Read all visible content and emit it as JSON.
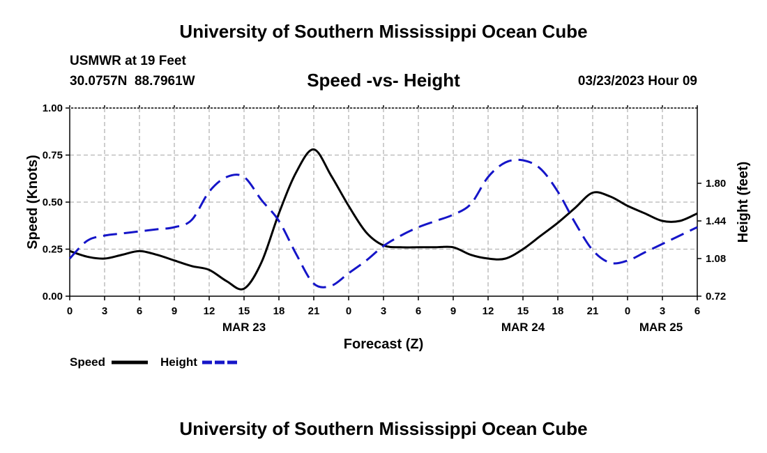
{
  "header": {
    "title": "University of Southern Mississippi Ocean Cube",
    "station": "USMWR at 19 Feet",
    "coords": "30.0757N  88.7961W",
    "subtitle": "Speed -vs- Height",
    "datetime": "03/23/2023 Hour 09"
  },
  "footer": {
    "title": "University of Southern Mississippi Ocean Cube"
  },
  "legend": {
    "speed_label": "Speed",
    "height_label": "Height"
  },
  "colors": {
    "speed": "#000000",
    "height": "#1515c8",
    "grid": "#b4b4b4"
  },
  "chart_data": {
    "type": "line",
    "title": "Speed -vs- Height",
    "xlabel": "Forecast (Z)",
    "ylabel": "Speed (Knots)",
    "ylabel_right": "Height (feet)",
    "x_ticks": [
      "0",
      "3",
      "6",
      "9",
      "12",
      "15",
      "18",
      "21",
      "0",
      "3",
      "6",
      "9",
      "12",
      "15",
      "18",
      "21",
      "0",
      "3",
      "6"
    ],
    "date_labels": [
      {
        "label": "MAR 23",
        "x": 15
      },
      {
        "label": "MAR 24",
        "x": 39
      },
      {
        "label": "MAR 25",
        "x": 63
      }
    ],
    "xlim": [
      0,
      54
    ],
    "ylim": [
      0,
      1.0
    ],
    "y_ticks": [
      "0.00",
      "0.25",
      "0.50",
      "0.75",
      "1.00"
    ],
    "y_tick_values": [
      0,
      0.25,
      0.5,
      0.75,
      1.0
    ],
    "ylim_right": [
      0.72,
      2.52
    ],
    "y_ticks_right": [
      "0.72",
      "1.08",
      "1.44",
      "1.80"
    ],
    "y_tick_values_right": [
      0.72,
      1.08,
      1.44,
      1.8
    ],
    "series": [
      {
        "name": "Speed",
        "axis": "left",
        "style": "solid",
        "x": [
          0,
          1.5,
          3,
          4.5,
          6,
          7.5,
          9,
          10.5,
          12,
          13.5,
          15,
          16.5,
          18,
          19.5,
          21,
          22.5,
          24,
          25.5,
          27,
          28.5,
          30,
          31.5,
          33,
          34.5,
          36,
          37.5,
          39,
          40.5,
          42,
          43.5,
          45,
          46.5,
          48,
          49.5,
          51,
          52.5,
          54
        ],
        "values": [
          0.24,
          0.21,
          0.2,
          0.22,
          0.24,
          0.22,
          0.19,
          0.16,
          0.14,
          0.08,
          0.04,
          0.18,
          0.44,
          0.66,
          0.78,
          0.64,
          0.48,
          0.34,
          0.27,
          0.26,
          0.26,
          0.26,
          0.26,
          0.22,
          0.2,
          0.2,
          0.25,
          0.32,
          0.39,
          0.47,
          0.55,
          0.53,
          0.48,
          0.44,
          0.4,
          0.4,
          0.44
        ]
      },
      {
        "name": "Height",
        "axis": "right",
        "style": "dashed",
        "x": [
          0,
          1.5,
          3,
          4.5,
          6,
          7.5,
          9,
          10.5,
          12,
          13.5,
          15,
          16.5,
          18,
          19.5,
          21,
          22.5,
          24,
          25.5,
          27,
          28.5,
          30,
          31.5,
          33,
          34.5,
          36,
          37.5,
          39,
          40.5,
          42,
          43.5,
          45,
          46.5,
          48,
          49.5,
          51,
          52.5,
          54
        ],
        "values": [
          1.08,
          1.25,
          1.3,
          1.32,
          1.34,
          1.36,
          1.38,
          1.45,
          1.72,
          1.86,
          1.86,
          1.64,
          1.44,
          1.12,
          0.84,
          0.82,
          0.94,
          1.06,
          1.2,
          1.3,
          1.38,
          1.44,
          1.5,
          1.6,
          1.86,
          2.0,
          2.02,
          1.94,
          1.72,
          1.42,
          1.16,
          1.04,
          1.06,
          1.14,
          1.22,
          1.3,
          1.38
        ]
      }
    ]
  }
}
